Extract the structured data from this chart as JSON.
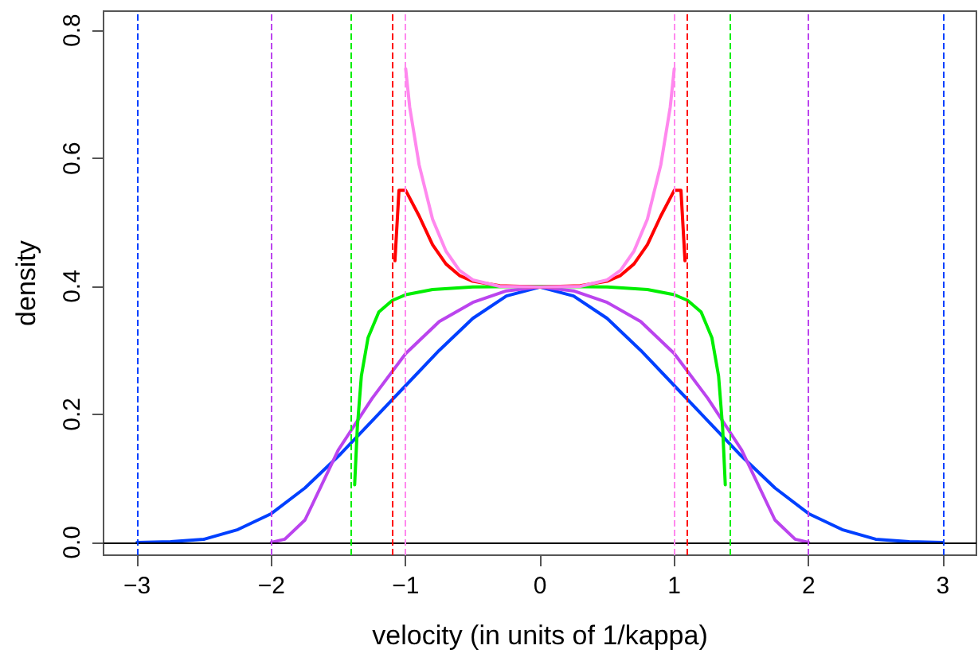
{
  "chart_data": {
    "type": "line",
    "xlabel": "velocity (in units of 1/kappa)",
    "ylabel": "density",
    "xlim": [
      -3.25,
      3.25
    ],
    "ylim": [
      -0.02,
      0.83
    ],
    "xticks": [
      -3,
      -2,
      -1,
      0,
      1,
      2,
      3
    ],
    "yticks": [
      {
        "value": 0,
        "label": "0.0"
      },
      0.2,
      0.4,
      0.6,
      0.8
    ],
    "grid": false,
    "marker": "none",
    "line_style": "solid",
    "series": [
      {
        "color": "#0040ff",
        "x": [
          -3,
          -2.75,
          -2.5,
          -2.25,
          -2,
          -1.75,
          -1.5,
          -1.25,
          -1,
          -0.75,
          -0.5,
          -0.25,
          0,
          0.25,
          0.5,
          0.75,
          1,
          1.25,
          1.5,
          1.75,
          2,
          2.25,
          2.5,
          2.75,
          3
        ],
        "values": [
          0,
          0.001,
          0.005,
          0.02,
          0.045,
          0.085,
          0.135,
          0.19,
          0.245,
          0.3,
          0.35,
          0.385,
          0.399,
          0.385,
          0.35,
          0.3,
          0.245,
          0.19,
          0.135,
          0.085,
          0.045,
          0.02,
          0.005,
          0.001,
          0
        ]
      },
      {
        "color": "#bb44ee",
        "x": [
          -2,
          -1.9,
          -1.75,
          -1.5,
          -1.25,
          -1,
          -0.75,
          -0.5,
          -0.25,
          0,
          0.25,
          0.5,
          0.75,
          1,
          1.25,
          1.5,
          1.75,
          1.9,
          2
        ],
        "values": [
          0,
          0.005,
          0.035,
          0.145,
          0.225,
          0.295,
          0.345,
          0.375,
          0.393,
          0.399,
          0.393,
          0.375,
          0.345,
          0.295,
          0.225,
          0.145,
          0.035,
          0.005,
          0
        ]
      },
      {
        "color": "#00ee00",
        "x": [
          -1.38,
          -1.36,
          -1.33,
          -1.28,
          -1.2,
          -1.1,
          -1,
          -0.8,
          -0.5,
          0,
          0.5,
          0.8,
          1,
          1.1,
          1.2,
          1.28,
          1.33,
          1.36,
          1.38
        ],
        "values": [
          0.09,
          0.18,
          0.26,
          0.32,
          0.36,
          0.378,
          0.387,
          0.395,
          0.399,
          0.4,
          0.399,
          0.395,
          0.387,
          0.378,
          0.36,
          0.32,
          0.26,
          0.18,
          0.09
        ]
      },
      {
        "color": "#ff0000",
        "x": [
          -1.08,
          -1.05,
          -1,
          -0.9,
          -0.8,
          -0.7,
          -0.6,
          -0.5,
          -0.3,
          0,
          0.3,
          0.5,
          0.6,
          0.7,
          0.8,
          0.9,
          1,
          1.05,
          1.08
        ],
        "values": [
          0.44,
          0.55,
          0.55,
          0.51,
          0.465,
          0.435,
          0.417,
          0.408,
          0.401,
          0.399,
          0.401,
          0.408,
          0.417,
          0.435,
          0.465,
          0.51,
          0.55,
          0.55,
          0.44
        ]
      },
      {
        "color": "#ff88ee",
        "x": [
          -1,
          -0.97,
          -0.9,
          -0.8,
          -0.7,
          -0.6,
          -0.5,
          -0.3,
          0,
          0.3,
          0.5,
          0.6,
          0.7,
          0.8,
          0.9,
          0.97,
          1
        ],
        "values": [
          0.74,
          0.68,
          0.59,
          0.505,
          0.455,
          0.425,
          0.41,
          0.4,
          0.399,
          0.4,
          0.41,
          0.425,
          0.455,
          0.505,
          0.59,
          0.68,
          0.74
        ]
      }
    ],
    "ref_lines": [
      {
        "axis": "y",
        "value": 0,
        "color": "#000000",
        "line_style": "solid"
      },
      {
        "axis": "x",
        "value": -3,
        "color": "#0040ff",
        "line_style": "dashed"
      },
      {
        "axis": "x",
        "value": 3,
        "color": "#0040ff",
        "line_style": "dashed"
      },
      {
        "axis": "x",
        "value": -2,
        "color": "#bb44ee",
        "line_style": "dashed"
      },
      {
        "axis": "x",
        "value": 2,
        "color": "#bb44ee",
        "line_style": "dashed"
      },
      {
        "axis": "x",
        "value": -1.414,
        "color": "#00ee00",
        "line_style": "dashed"
      },
      {
        "axis": "x",
        "value": 1.414,
        "color": "#00ee00",
        "line_style": "dashed"
      },
      {
        "axis": "x",
        "value": -1.1,
        "color": "#ff0000",
        "line_style": "dashed"
      },
      {
        "axis": "x",
        "value": 1.1,
        "color": "#ff0000",
        "line_style": "dashed"
      },
      {
        "axis": "x",
        "value": -1,
        "color": "#ff88ee",
        "line_style": "dashed"
      },
      {
        "axis": "x",
        "value": 1,
        "color": "#ff88ee",
        "line_style": "dashed"
      }
    ]
  }
}
